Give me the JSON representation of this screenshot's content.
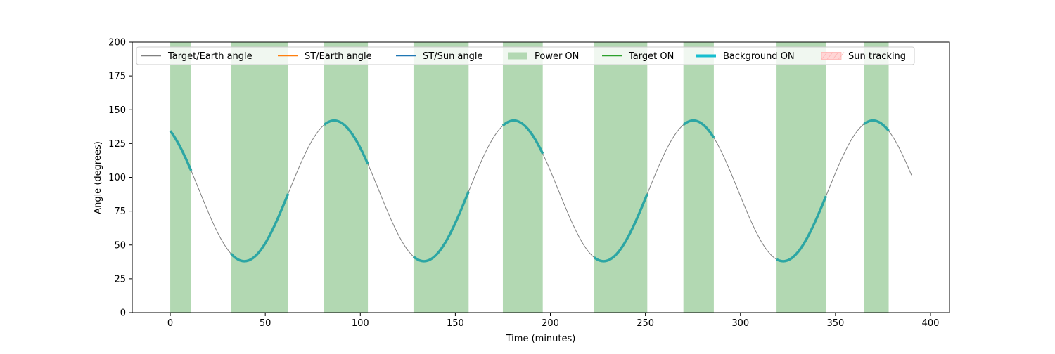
{
  "chart_data": {
    "type": "line",
    "title": "",
    "xlabel": "Time (minutes)",
    "ylabel": "Angle (degrees)",
    "xlim": [
      -20,
      410
    ],
    "ylim": [
      0,
      200
    ],
    "xticks": [
      0,
      50,
      100,
      150,
      200,
      250,
      300,
      350,
      400
    ],
    "yticks": [
      0,
      25,
      50,
      75,
      100,
      125,
      150,
      175,
      200
    ],
    "grid": false,
    "legend_position": "top (inside axes, single row)",
    "legend": [
      {
        "label": "Target/Earth angle",
        "kind": "line",
        "color": "#808080"
      },
      {
        "label": "ST/Earth angle",
        "kind": "line",
        "color": "#ff7f0e"
      },
      {
        "label": "ST/Sun angle",
        "kind": "line",
        "color": "#1f77b4"
      },
      {
        "label": "Power ON",
        "kind": "patch",
        "color": "#b2d8b2"
      },
      {
        "label": "Target ON",
        "kind": "line",
        "color": "#2ca02c"
      },
      {
        "label": "Background ON",
        "kind": "thickline",
        "color": "#17becf"
      },
      {
        "label": "Sun tracking",
        "kind": "hatchpatch",
        "color": "#ffd6d6"
      }
    ],
    "target_earth_angle": {
      "name": "Target/Earth angle",
      "color": "#808080",
      "period_minutes": 94.5,
      "mean_deg": 90,
      "amplitude_deg": 52,
      "start_minute": 0,
      "end_minute": 390,
      "samples": [
        [
          0,
          133
        ],
        [
          10,
          107
        ],
        [
          20,
          78
        ],
        [
          30,
          52
        ],
        [
          39,
          38
        ],
        [
          50,
          48
        ],
        [
          60,
          80
        ],
        [
          70,
          114
        ],
        [
          80,
          137
        ],
        [
          86,
          142
        ],
        [
          95,
          131
        ],
        [
          103,
          109
        ],
        [
          115,
          76
        ],
        [
          125,
          48
        ],
        [
          133,
          38
        ],
        [
          145,
          52
        ],
        [
          156,
          89
        ],
        [
          165,
          119
        ],
        [
          175,
          137
        ],
        [
          180,
          142
        ],
        [
          190,
          130
        ],
        [
          196,
          113
        ],
        [
          210,
          70
        ],
        [
          220,
          44
        ],
        [
          227,
          38
        ],
        [
          240,
          56
        ],
        [
          251,
          90
        ],
        [
          262,
          124
        ],
        [
          270,
          139
        ],
        [
          274,
          142
        ],
        [
          286,
          124
        ],
        [
          300,
          80
        ],
        [
          310,
          52
        ],
        [
          321,
          38
        ],
        [
          333,
          52
        ],
        [
          345,
          90
        ],
        [
          355,
          120
        ],
        [
          365,
          140
        ],
        [
          368,
          142
        ],
        [
          378,
          129
        ],
        [
          390,
          95
        ]
      ]
    },
    "power_on_intervals": [
      [
        0,
        11
      ],
      [
        32,
        62
      ],
      [
        81,
        104
      ],
      [
        128,
        157
      ],
      [
        175,
        196
      ],
      [
        223,
        251
      ],
      [
        270,
        286
      ],
      [
        319,
        345
      ],
      [
        365,
        378
      ]
    ],
    "power_color": "#b2d8b2",
    "background_color": "#2ca6a4"
  }
}
